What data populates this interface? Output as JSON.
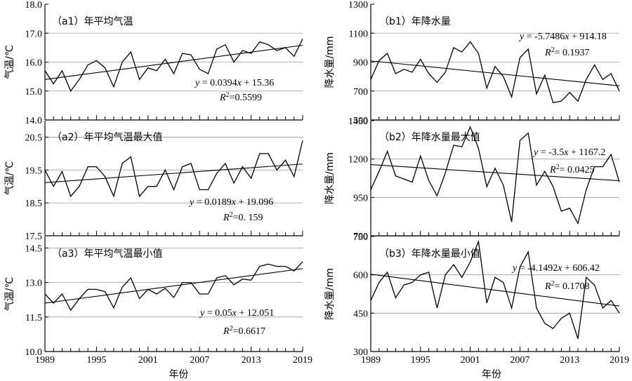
{
  "x_axis_label": "年份",
  "chart_data": [
    {
      "id": "a1",
      "type": "line",
      "title": "（a1）年平均气温",
      "ylabel": "气温/℃",
      "x": [
        1989,
        1990,
        1991,
        1992,
        1993,
        1994,
        1995,
        1996,
        1997,
        1998,
        1999,
        2000,
        2001,
        2002,
        2003,
        2004,
        2005,
        2006,
        2007,
        2008,
        2009,
        2010,
        2011,
        2012,
        2013,
        2014,
        2015,
        2016,
        2017,
        2018,
        2019
      ],
      "values": [
        15.7,
        15.25,
        15.7,
        15.0,
        15.4,
        15.9,
        16.05,
        15.8,
        15.15,
        16.0,
        16.35,
        15.4,
        15.8,
        15.7,
        16.1,
        15.6,
        16.3,
        16.25,
        15.75,
        15.6,
        16.45,
        16.6,
        16.0,
        16.4,
        16.3,
        16.7,
        16.6,
        16.4,
        16.5,
        16.2,
        16.8
      ],
      "ylim": [
        14.0,
        18.0
      ],
      "yticks": [
        "14.0",
        "15.0",
        "16.0",
        "17.0",
        "18.0"
      ],
      "grid_y": [
        15.0,
        16.0,
        17.0
      ],
      "trend": {
        "slope": 0.0394,
        "intercept": 15.36
      },
      "equation": "y = 0.0394x + 15.36",
      "r2_prefix": "R",
      "r2_value": "=0.5599"
    },
    {
      "id": "a2",
      "type": "line",
      "title": "（a2）年平均气温最大值",
      "ylabel": "气温/℃",
      "x": [
        1989,
        1990,
        1991,
        1992,
        1993,
        1994,
        1995,
        1996,
        1997,
        1998,
        1999,
        2000,
        2001,
        2002,
        2003,
        2004,
        2005,
        2006,
        2007,
        2008,
        2009,
        2010,
        2011,
        2012,
        2013,
        2014,
        2015,
        2016,
        2017,
        2018,
        2019
      ],
      "values": [
        19.5,
        19.0,
        19.45,
        18.7,
        19.0,
        19.6,
        19.6,
        19.3,
        18.7,
        19.7,
        19.9,
        18.7,
        19.0,
        19.0,
        19.5,
        18.9,
        19.6,
        19.7,
        18.9,
        18.9,
        19.4,
        19.7,
        19.1,
        19.6,
        19.25,
        20.0,
        20.0,
        19.5,
        19.8,
        19.3,
        20.4
      ],
      "ylim": [
        17.5,
        21.0
      ],
      "yticks": [
        "17.5",
        "18.5",
        "19.5",
        "20.5"
      ],
      "grid_y": [
        18.5,
        19.5,
        20.5
      ],
      "trend": {
        "slope": 0.0189,
        "intercept": 19.096
      },
      "equation": "y = 0.0189x + 19.096",
      "r2_prefix": "R",
      "r2_value": "=0. 159"
    },
    {
      "id": "a3",
      "type": "line",
      "title": "（a3）年平均气温最小值",
      "ylabel": "气温/℃",
      "x": [
        1989,
        1990,
        1991,
        1992,
        1993,
        1994,
        1995,
        1996,
        1997,
        1998,
        1999,
        2000,
        2001,
        2002,
        2003,
        2004,
        2005,
        2006,
        2007,
        2008,
        2009,
        2010,
        2011,
        2012,
        2013,
        2014,
        2015,
        2016,
        2017,
        2018,
        2019
      ],
      "values": [
        12.5,
        12.1,
        12.5,
        11.8,
        12.3,
        12.7,
        12.7,
        12.6,
        11.9,
        12.8,
        13.2,
        12.3,
        12.7,
        12.5,
        12.75,
        12.35,
        13.0,
        13.0,
        12.5,
        12.5,
        13.2,
        13.3,
        12.9,
        13.15,
        13.1,
        13.7,
        13.8,
        13.7,
        13.7,
        13.5,
        13.9
      ],
      "ylim": [
        10.0,
        15.0
      ],
      "yticks": [
        "10.0",
        "11.5",
        "13.0",
        "14.5"
      ],
      "grid_y": [
        11.5,
        13.0,
        14.5
      ],
      "trend": {
        "slope": 0.05,
        "intercept": 12.051
      },
      "equation": "y = 0.05x + 12.051",
      "r2_prefix": "R",
      "r2_value": "=0.6617"
    },
    {
      "id": "b1",
      "type": "line",
      "title": "（b1）年降水量",
      "ylabel": "降水量/mm",
      "x": [
        1989,
        1990,
        1991,
        1992,
        1993,
        1994,
        1995,
        1996,
        1997,
        1998,
        1999,
        2000,
        2001,
        2002,
        2003,
        2004,
        2005,
        2006,
        2007,
        2008,
        2009,
        2010,
        2011,
        2012,
        2013,
        2014,
        2015,
        2016,
        2017,
        2018,
        2019
      ],
      "values": [
        780,
        910,
        960,
        820,
        850,
        830,
        920,
        820,
        760,
        830,
        1000,
        970,
        1040,
        960,
        720,
        870,
        800,
        660,
        930,
        990,
        680,
        810,
        620,
        630,
        690,
        630,
        780,
        880,
        780,
        820,
        700
      ],
      "ylim": [
        500,
        1300
      ],
      "yticks": [
        "500",
        "700",
        "900",
        "1100",
        "1300"
      ],
      "grid_y": [
        700,
        900,
        1100
      ],
      "trend": {
        "slope": -5.7486,
        "intercept": 914.18
      },
      "equation": "y = -5.7486x + 914.18",
      "r2_prefix": "R",
      "r2_value": "= 0.1937"
    },
    {
      "id": "b2",
      "type": "line",
      "title": "（b2）年降水量最大值",
      "ylabel": "降水量/mm",
      "x": [
        1989,
        1990,
        1991,
        1992,
        1993,
        1994,
        1995,
        1996,
        1997,
        1998,
        1999,
        2000,
        2001,
        2002,
        2003,
        2004,
        2005,
        2006,
        2007,
        2008,
        2009,
        2010,
        2011,
        2012,
        2013,
        2014,
        2015,
        2016,
        2017,
        2018,
        2019
      ],
      "values": [
        1000,
        1120,
        1250,
        1090,
        1070,
        1050,
        1220,
        1060,
        960,
        1110,
        1290,
        1280,
        1410,
        1270,
        1020,
        1140,
        1030,
        790,
        1320,
        1370,
        1030,
        1120,
        1020,
        860,
        880,
        780,
        1000,
        1150,
        1150,
        1230,
        1050
      ],
      "ylim": [
        700,
        1450
      ],
      "yticks": [
        "700",
        "950",
        "1200",
        "1450"
      ],
      "grid_y": [
        950,
        1200,
        1450
      ],
      "trend": {
        "slope": -3.5,
        "intercept": 1167.2
      },
      "equation": "y = -3.5x + 1167.2",
      "r2_prefix": "R",
      "r2_value": "= 0.0425"
    },
    {
      "id": "b3",
      "type": "line",
      "title": "（b3）年降水量最小值",
      "ylabel": "降水量/mm",
      "x": [
        1989,
        1990,
        1991,
        1992,
        1993,
        1994,
        1995,
        1996,
        1997,
        1998,
        1999,
        2000,
        2001,
        2002,
        2003,
        2004,
        2005,
        2006,
        2007,
        2008,
        2009,
        2010,
        2011,
        2012,
        2013,
        2014,
        2015,
        2016,
        2017,
        2018,
        2019
      ],
      "values": [
        500,
        570,
        610,
        510,
        560,
        570,
        600,
        610,
        470,
        600,
        640,
        590,
        650,
        730,
        490,
        590,
        570,
        470,
        630,
        690,
        470,
        410,
        390,
        430,
        450,
        350,
        590,
        560,
        470,
        500,
        450
      ],
      "ylim": [
        300,
        750
      ],
      "yticks": [
        "300",
        "450",
        "600",
        "750"
      ],
      "grid_y": [
        450,
        600,
        750
      ],
      "trend": {
        "slope": -4.1492,
        "intercept": 606.42
      },
      "equation": "y = -4.1492x + 606.42",
      "r2_prefix": "R",
      "r2_value": "= 0.1708"
    }
  ],
  "x_ticks": [
    "1989",
    "1995",
    "2001",
    "2007",
    "2013",
    "2019"
  ]
}
